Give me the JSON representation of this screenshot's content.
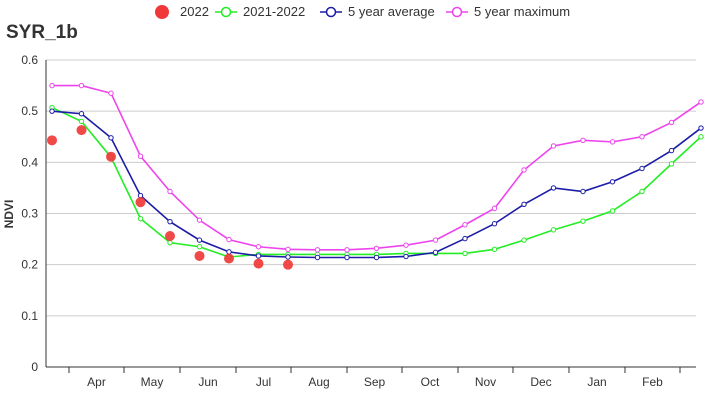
{
  "chart_data": {
    "type": "line",
    "title": "SYR_1b",
    "ylabel": "NDVI",
    "xlabel": "",
    "ylim": [
      0,
      0.6
    ],
    "yticks": [
      0,
      0.1,
      0.2,
      0.3,
      0.4,
      0.5,
      0.6
    ],
    "ytick_labels": [
      "0",
      "0.1",
      "0.2",
      "0.3",
      "0.4",
      "0.5",
      "0.6"
    ],
    "month_labels": [
      "Apr",
      "May",
      "Jun",
      "Jul",
      "Aug",
      "Sep",
      "Oct",
      "Nov",
      "Dec",
      "Jan",
      "Feb"
    ],
    "grid": true,
    "legend_position": "top",
    "series": [
      {
        "name": "2022",
        "style": "markers",
        "color": "#f03838",
        "values": [
          0.443,
          0.463,
          0.411,
          0.322,
          0.256,
          0.217,
          0.212,
          0.202,
          0.2
        ]
      },
      {
        "name": "2021-2022",
        "style": "line",
        "color": "#22ee22",
        "values": [
          0.507,
          0.48,
          0.41,
          0.29,
          0.243,
          0.235,
          0.215,
          0.22,
          0.22,
          0.22,
          0.22,
          0.22,
          0.222,
          0.222,
          0.222,
          0.23,
          0.248,
          0.268,
          0.285,
          0.305,
          0.343,
          0.397,
          0.45
        ]
      },
      {
        "name": "5 year average",
        "style": "line",
        "color": "#1c1ca8",
        "values": [
          0.5,
          0.495,
          0.448,
          0.335,
          0.284,
          0.248,
          0.225,
          0.217,
          0.215,
          0.214,
          0.214,
          0.214,
          0.216,
          0.224,
          0.251,
          0.28,
          0.318,
          0.35,
          0.343,
          0.362,
          0.388,
          0.423,
          0.467
        ]
      },
      {
        "name": "5 year maximum",
        "style": "line",
        "color": "#ee44ee",
        "values": [
          0.55,
          0.55,
          0.535,
          0.412,
          0.343,
          0.287,
          0.249,
          0.235,
          0.23,
          0.229,
          0.229,
          0.232,
          0.238,
          0.248,
          0.278,
          0.31,
          0.385,
          0.432,
          0.443,
          0.44,
          0.45,
          0.478,
          0.518
        ]
      }
    ]
  }
}
